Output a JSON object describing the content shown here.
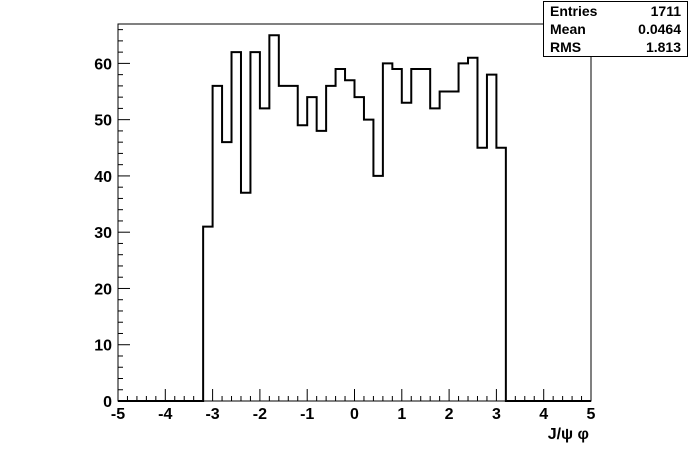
{
  "chart_data": {
    "type": "bar",
    "style": "step-histogram",
    "xlabel": "J/ψ φ",
    "xlim": [
      -5,
      5
    ],
    "ylim": [
      0,
      67
    ],
    "x_ticks": [
      "-5",
      "-4",
      "-3",
      "-2",
      "-1",
      "0",
      "1",
      "2",
      "3",
      "4",
      "5"
    ],
    "y_ticks": [
      "0",
      "10",
      "20",
      "30",
      "40",
      "50",
      "60"
    ],
    "bin_width": 0.2,
    "bin_edges_start": -3.2,
    "values": [
      31,
      56,
      46,
      62,
      37,
      62,
      52,
      65,
      56,
      56,
      49,
      54,
      48,
      56,
      59,
      57,
      54,
      50,
      40,
      60,
      59,
      53,
      59,
      59,
      52,
      55,
      55,
      60,
      61,
      45,
      58,
      45
    ],
    "grid": false,
    "legend": "none"
  },
  "stats": [
    {
      "label": "Entries",
      "value": "1711"
    },
    {
      "label": "Mean",
      "value": "0.0464"
    },
    {
      "label": "RMS",
      "value": "1.813"
    }
  ]
}
